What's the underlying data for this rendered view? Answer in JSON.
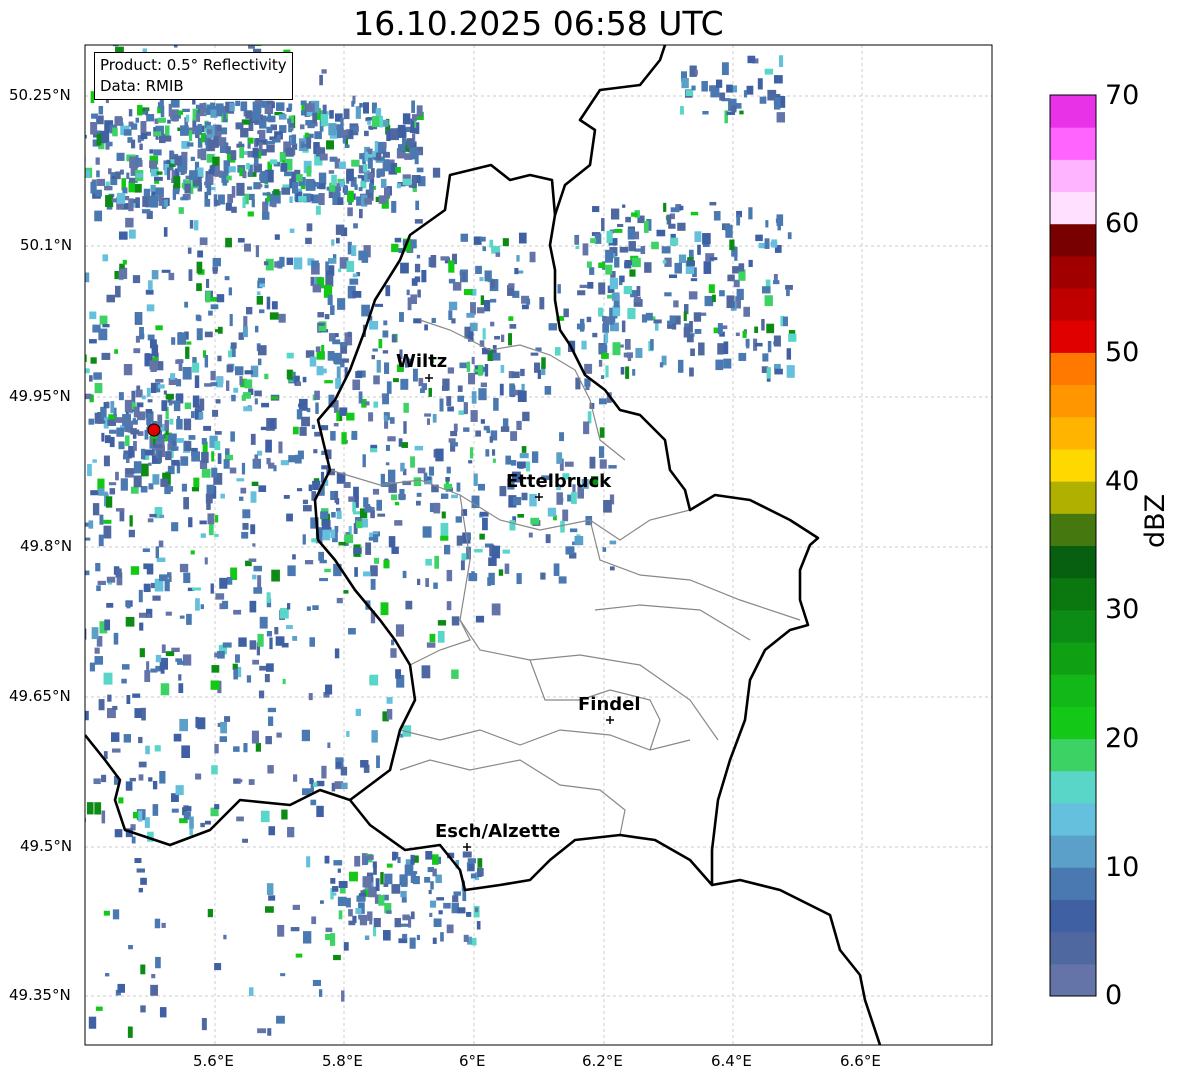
{
  "title": "16.10.2025 06:58 UTC",
  "info": {
    "product": "Product: 0.5° Reflectivity",
    "data": "Data: RMIB"
  },
  "lon_ticks": [
    "5.6°E",
    "5.8°E",
    "6°E",
    "6.2°E",
    "6.4°E",
    "6.6°E"
  ],
  "lat_ticks": [
    "50.25°N",
    "50.1°N",
    "49.95°N",
    "49.8°N",
    "49.65°N",
    "49.5°N",
    "49.35°N"
  ],
  "cities": [
    "Wiltz",
    "Ettelbruck",
    "Findel",
    "Esch/Alzette"
  ],
  "colorbar": {
    "label": "dBZ",
    "ticks": [
      "0",
      "10",
      "20",
      "30",
      "40",
      "50",
      "60",
      "70"
    ],
    "colors": [
      "#6474a8",
      "#5068a0",
      "#4060a4",
      "#4a78b0",
      "#5aa0c8",
      "#64c0dc",
      "#5ad6c8",
      "#3cd264",
      "#14c818",
      "#12b818",
      "#10a014",
      "#0c8c14",
      "#0a780f",
      "#066010",
      "#467810",
      "#b0b000",
      "#ffd800",
      "#ffb400",
      "#ff9600",
      "#ff7800",
      "#e00000",
      "#c00000",
      "#a00000",
      "#780000",
      "#ffe1ff",
      "#ffb4ff",
      "#ff64ff",
      "#e832e8"
    ]
  }
}
